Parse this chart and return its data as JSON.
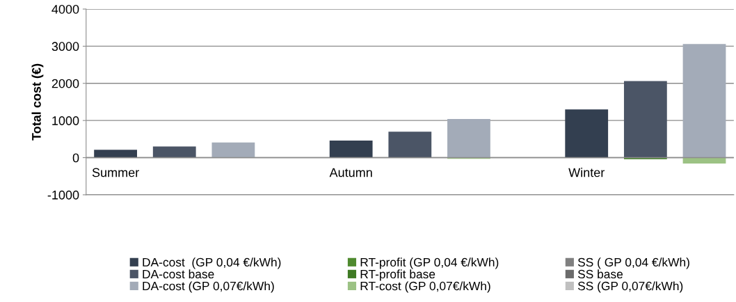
{
  "chart_data": {
    "type": "bar",
    "ylabel": "Total cost (€)",
    "categories": [
      "Summer",
      null,
      null,
      null,
      "Autumn",
      null,
      null,
      null,
      "Winter",
      null,
      null
    ],
    "ylim": [
      -1000,
      4000
    ],
    "yticks": [
      -1000,
      0,
      1000,
      2000,
      3000,
      4000
    ],
    "grid": "y",
    "legend": "bottom",
    "series": [
      {
        "name": "DA-cost  (GP 0,04 €/kWh)",
        "color": "#333f50",
        "values": [
          210,
          null,
          null,
          null,
          460,
          null,
          null,
          null,
          1300,
          null,
          null
        ]
      },
      {
        "name": "RT-profit (GP 0,04 €/kWh)",
        "color": "#4f8a2f",
        "values": [
          -10,
          null,
          null,
          null,
          -10,
          null,
          null,
          null,
          -10,
          null,
          null
        ]
      },
      {
        "name": "SS ( GP 0,04 €/kWh)",
        "color": "#808080",
        "values": [
          null,
          null,
          null,
          null,
          null,
          null,
          null,
          null,
          null,
          null,
          null
        ]
      },
      {
        "name": "DA-cost base",
        "color": "#4b5566",
        "values": [
          null,
          300,
          null,
          null,
          null,
          700,
          null,
          null,
          null,
          2060,
          null
        ]
      },
      {
        "name": "RT-profit base",
        "color": "#3f7a24",
        "values": [
          null,
          -10,
          null,
          null,
          null,
          -10,
          null,
          null,
          null,
          -40,
          null
        ]
      },
      {
        "name": "SS base",
        "color": "#6b6b6b",
        "values": [
          null,
          null,
          null,
          null,
          null,
          null,
          null,
          null,
          null,
          null,
          null
        ]
      },
      {
        "name": "DA-cost (GP 0,07€/kWh)",
        "color": "#a3abb8",
        "values": [
          null,
          null,
          410,
          null,
          null,
          null,
          1040,
          null,
          null,
          null,
          3060
        ]
      },
      {
        "name": "RT-cost (GP 0,07€/kWh)",
        "color": "#9cc284",
        "values": [
          null,
          null,
          -10,
          null,
          null,
          null,
          -30,
          null,
          null,
          null,
          -160
        ]
      },
      {
        "name": "SS (GP 0,07€/kWh)",
        "color": "#c0c0c0",
        "values": [
          null,
          null,
          null,
          null,
          null,
          null,
          null,
          null,
          null,
          null,
          null
        ]
      }
    ]
  }
}
